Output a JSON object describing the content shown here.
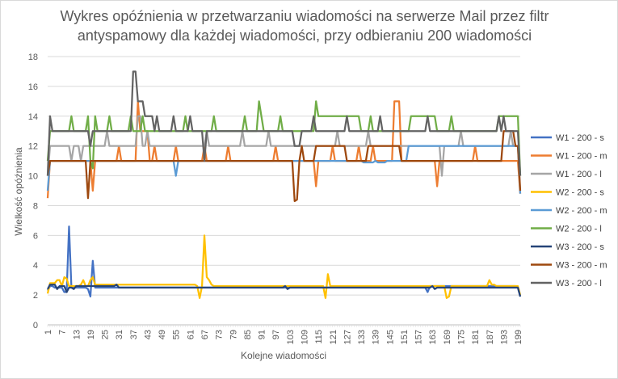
{
  "chart_data": {
    "type": "line",
    "title_lines": [
      "Wykres opóźnienia w przetwarzaniu wiadomości na serwerze Mail przez filtr",
      "antyspamowy dla każdej wiadomości, przy odbieraniu 200 wiadomości"
    ],
    "xlabel": "Kolejne wiadomości",
    "ylabel": "Wielkość opóźnienia",
    "xlim": [
      1,
      200
    ],
    "ylim": [
      0,
      18
    ],
    "y_ticks": [
      0,
      2,
      4,
      6,
      8,
      10,
      12,
      14,
      16,
      18
    ],
    "x_ticks": [
      1,
      7,
      13,
      19,
      25,
      31,
      37,
      43,
      49,
      55,
      61,
      67,
      73,
      79,
      85,
      91,
      97,
      103,
      109,
      115,
      121,
      127,
      133,
      139,
      145,
      151,
      157,
      163,
      169,
      175,
      181,
      187,
      193,
      199
    ],
    "grid": "horizontal",
    "legend_position": "right",
    "series": [
      {
        "name": "W1 - 200 - s",
        "color": "#4472C4",
        "baseline": 2.5,
        "points": [
          [
            1,
            2.3
          ],
          [
            2,
            2.6
          ],
          [
            4,
            2.5
          ],
          [
            8,
            2.2
          ],
          [
            10,
            6.6
          ],
          [
            11,
            2.5
          ],
          [
            18,
            2.4
          ],
          [
            19,
            1.9
          ],
          [
            20,
            4.3
          ],
          [
            21,
            2.5
          ],
          [
            160,
            2.5
          ],
          [
            161,
            2.2
          ],
          [
            162,
            2.6
          ],
          [
            199,
            2.5
          ],
          [
            200,
            1.9
          ]
        ]
      },
      {
        "name": "W1 - 200 - m",
        "color": "#ED7D31",
        "baseline": 11,
        "points": [
          [
            1,
            8.5
          ],
          [
            2,
            11
          ],
          [
            19,
            11
          ],
          [
            20,
            9
          ],
          [
            21,
            11
          ],
          [
            30,
            11
          ],
          [
            31,
            12
          ],
          [
            32,
            11
          ],
          [
            38,
            11
          ],
          [
            39,
            15
          ],
          [
            40,
            13
          ],
          [
            44,
            11
          ],
          [
            46,
            12
          ],
          [
            47,
            11
          ],
          [
            55,
            12
          ],
          [
            56,
            11
          ],
          [
            66,
            11
          ],
          [
            67,
            12
          ],
          [
            68,
            11
          ],
          [
            76,
            11
          ],
          [
            77,
            12
          ],
          [
            78,
            11
          ],
          [
            96,
            11
          ],
          [
            97,
            12
          ],
          [
            98,
            11
          ],
          [
            113,
            11
          ],
          [
            114,
            9.3
          ],
          [
            115,
            11
          ],
          [
            121,
            12
          ],
          [
            122,
            11
          ],
          [
            131,
            11
          ],
          [
            132,
            12
          ],
          [
            133,
            11
          ],
          [
            138,
            12
          ],
          [
            139,
            11
          ],
          [
            146,
            11
          ],
          [
            147,
            15
          ],
          [
            149,
            15
          ],
          [
            150,
            11
          ],
          [
            164,
            11
          ],
          [
            165,
            9.3
          ],
          [
            166,
            11
          ],
          [
            180,
            11
          ],
          [
            181,
            12
          ],
          [
            182,
            11
          ],
          [
            199,
            11
          ],
          [
            200,
            8.8
          ]
        ]
      },
      {
        "name": "W1 - 200 - l",
        "color": "#A5A5A5",
        "baseline": 12,
        "points": [
          [
            1,
            10
          ],
          [
            2,
            12
          ],
          [
            10,
            12
          ],
          [
            11,
            11
          ],
          [
            12,
            12
          ],
          [
            14,
            12
          ],
          [
            15,
            11
          ],
          [
            16,
            12
          ],
          [
            25,
            12
          ],
          [
            26,
            13
          ],
          [
            27,
            12
          ],
          [
            38,
            12
          ],
          [
            39,
            14
          ],
          [
            41,
            12
          ],
          [
            43,
            13
          ],
          [
            44,
            12
          ],
          [
            67,
            12
          ],
          [
            68,
            13
          ],
          [
            69,
            12
          ],
          [
            82,
            12
          ],
          [
            83,
            13
          ],
          [
            84,
            12
          ],
          [
            93,
            12
          ],
          [
            94,
            13
          ],
          [
            95,
            12
          ],
          [
            122,
            12
          ],
          [
            123,
            13
          ],
          [
            124,
            12
          ],
          [
            135,
            12
          ],
          [
            136,
            13
          ],
          [
            137,
            12
          ],
          [
            166,
            12
          ],
          [
            167,
            10
          ],
          [
            168,
            12
          ],
          [
            174,
            12
          ],
          [
            175,
            13
          ],
          [
            176,
            12
          ],
          [
            195,
            12
          ],
          [
            196,
            13
          ],
          [
            197,
            12
          ],
          [
            199,
            12
          ],
          [
            200,
            10
          ]
        ]
      },
      {
        "name": "W2 - 200 - s",
        "color": "#FFC000",
        "baseline": 2.6,
        "points": [
          [
            1,
            2.1
          ],
          [
            2,
            2.8
          ],
          [
            5,
            3.0
          ],
          [
            7,
            2.6
          ],
          [
            8,
            3.2
          ],
          [
            9,
            3.1
          ],
          [
            10,
            2.6
          ],
          [
            15,
            2.7
          ],
          [
            16,
            3.0
          ],
          [
            17,
            2.6
          ],
          [
            19,
            3.0
          ],
          [
            20,
            3.2
          ],
          [
            21,
            2.7
          ],
          [
            64,
            2.6
          ],
          [
            65,
            1.8
          ],
          [
            66,
            2.6
          ],
          [
            67,
            6
          ],
          [
            68,
            3.2
          ],
          [
            69,
            3.0
          ],
          [
            70,
            2.7
          ],
          [
            71,
            2.6
          ],
          [
            117,
            2.6
          ],
          [
            118,
            1.8
          ],
          [
            119,
            3.4
          ],
          [
            120,
            2.6
          ],
          [
            168,
            2.6
          ],
          [
            169,
            1.8
          ],
          [
            170,
            1.9
          ],
          [
            171,
            2.6
          ],
          [
            186,
            2.6
          ],
          [
            187,
            3.0
          ],
          [
            188,
            2.7
          ],
          [
            190,
            2.6
          ],
          [
            199,
            2.6
          ],
          [
            200,
            2.0
          ]
        ]
      },
      {
        "name": "W2 - 200 - m",
        "color": "#5B9BD5",
        "baseline": 11,
        "points": [
          [
            1,
            9.0
          ],
          [
            2,
            11
          ],
          [
            54,
            11
          ],
          [
            55,
            10
          ],
          [
            56,
            11
          ],
          [
            132,
            11
          ],
          [
            133,
            11
          ],
          [
            134,
            10.9
          ],
          [
            139,
            11
          ],
          [
            140,
            10.9
          ],
          [
            144,
            11
          ],
          [
            152,
            11
          ],
          [
            153,
            12
          ],
          [
            185,
            12
          ],
          [
            186,
            12
          ],
          [
            187,
            12
          ],
          [
            199,
            12
          ],
          [
            200,
            8.8
          ]
        ]
      },
      {
        "name": "W2 - 200 - l",
        "color": "#70AD47",
        "baseline": 13,
        "points": [
          [
            1,
            11
          ],
          [
            2,
            13
          ],
          [
            10,
            13
          ],
          [
            11,
            14
          ],
          [
            12,
            13
          ],
          [
            17,
            13
          ],
          [
            18,
            14
          ],
          [
            19,
            11
          ],
          [
            20,
            10.5
          ],
          [
            21,
            14
          ],
          [
            22,
            13
          ],
          [
            26,
            13
          ],
          [
            27,
            14
          ],
          [
            28,
            13
          ],
          [
            35,
            13
          ],
          [
            36,
            14
          ],
          [
            37,
            13
          ],
          [
            40,
            13
          ],
          [
            41,
            14
          ],
          [
            42,
            13
          ],
          [
            58,
            13
          ],
          [
            59,
            14
          ],
          [
            60,
            13
          ],
          [
            70,
            13
          ],
          [
            71,
            14
          ],
          [
            72,
            13
          ],
          [
            83,
            13
          ],
          [
            84,
            14
          ],
          [
            85,
            13
          ],
          [
            89,
            13
          ],
          [
            90,
            15
          ],
          [
            91,
            14
          ],
          [
            92,
            13
          ],
          [
            98,
            13
          ],
          [
            99,
            14
          ],
          [
            100,
            13
          ],
          [
            113,
            13
          ],
          [
            114,
            15
          ],
          [
            115,
            14
          ],
          [
            132,
            14
          ],
          [
            133,
            13
          ],
          [
            136,
            13
          ],
          [
            137,
            14
          ],
          [
            138,
            13
          ],
          [
            153,
            13
          ],
          [
            154,
            14
          ],
          [
            164,
            14
          ],
          [
            165,
            13
          ],
          [
            170,
            13
          ],
          [
            171,
            14
          ],
          [
            172,
            13
          ],
          [
            190,
            13
          ],
          [
            191,
            14
          ],
          [
            199,
            14
          ],
          [
            200,
            10
          ]
        ]
      },
      {
        "name": "W3 - 200 - s",
        "color": "#264478",
        "baseline": 2.5,
        "points": [
          [
            1,
            2.4
          ],
          [
            2,
            2.7
          ],
          [
            5,
            2.4
          ],
          [
            6,
            2.6
          ],
          [
            9,
            2.2
          ],
          [
            10,
            2.5
          ],
          [
            12,
            2.4
          ],
          [
            13,
            2.6
          ],
          [
            29,
            2.6
          ],
          [
            30,
            2.7
          ],
          [
            31,
            2.5
          ],
          [
            100,
            2.5
          ],
          [
            101,
            2.6
          ],
          [
            102,
            2.4
          ],
          [
            103,
            2.5
          ],
          [
            162,
            2.5
          ],
          [
            163,
            2.6
          ],
          [
            164,
            2.4
          ],
          [
            165,
            2.5
          ],
          [
            199,
            2.5
          ],
          [
            200,
            1.9
          ]
        ]
      },
      {
        "name": "W3 - 200 - m",
        "color": "#9E480E",
        "baseline": 11,
        "points": [
          [
            1,
            10
          ],
          [
            2,
            11
          ],
          [
            17,
            11
          ],
          [
            18,
            8.5
          ],
          [
            19,
            11
          ],
          [
            104,
            11
          ],
          [
            105,
            8.3
          ],
          [
            106,
            8.4
          ],
          [
            107,
            11
          ],
          [
            108,
            12
          ],
          [
            109,
            11
          ],
          [
            113,
            11
          ],
          [
            114,
            12
          ],
          [
            126,
            12
          ],
          [
            127,
            11
          ],
          [
            135,
            11
          ],
          [
            136,
            12
          ],
          [
            149,
            12
          ],
          [
            150,
            11
          ],
          [
            192,
            11
          ],
          [
            193,
            13
          ],
          [
            197,
            13
          ],
          [
            198,
            12
          ],
          [
            199,
            12
          ],
          [
            200,
            9
          ]
        ]
      },
      {
        "name": "W3 - 200 - l",
        "color": "#636363",
        "baseline": 13,
        "points": [
          [
            1,
            10
          ],
          [
            2,
            14
          ],
          [
            3,
            13
          ],
          [
            18,
            13
          ],
          [
            19,
            12
          ],
          [
            20,
            13
          ],
          [
            36,
            13
          ],
          [
            37,
            17
          ],
          [
            38,
            17
          ],
          [
            39,
            15
          ],
          [
            41,
            15
          ],
          [
            42,
            14
          ],
          [
            45,
            14
          ],
          [
            46,
            13
          ],
          [
            47,
            14
          ],
          [
            48,
            13
          ],
          [
            53,
            13
          ],
          [
            54,
            14
          ],
          [
            55,
            13
          ],
          [
            60,
            13
          ],
          [
            61,
            14
          ],
          [
            62,
            13
          ],
          [
            66,
            13
          ],
          [
            67,
            11
          ],
          [
            68,
            13
          ],
          [
            104,
            13
          ],
          [
            105,
            12
          ],
          [
            107,
            12
          ],
          [
            108,
            13
          ],
          [
            112,
            13
          ],
          [
            113,
            14
          ],
          [
            114,
            13
          ],
          [
            126,
            13
          ],
          [
            127,
            14
          ],
          [
            128,
            13
          ],
          [
            140,
            13
          ],
          [
            141,
            14
          ],
          [
            142,
            13
          ],
          [
            160,
            13
          ],
          [
            161,
            14
          ],
          [
            162,
            13
          ],
          [
            190,
            13
          ],
          [
            191,
            14
          ],
          [
            192,
            13
          ],
          [
            193,
            14
          ],
          [
            194,
            13
          ],
          [
            199,
            13
          ],
          [
            200,
            10
          ]
        ]
      }
    ]
  }
}
